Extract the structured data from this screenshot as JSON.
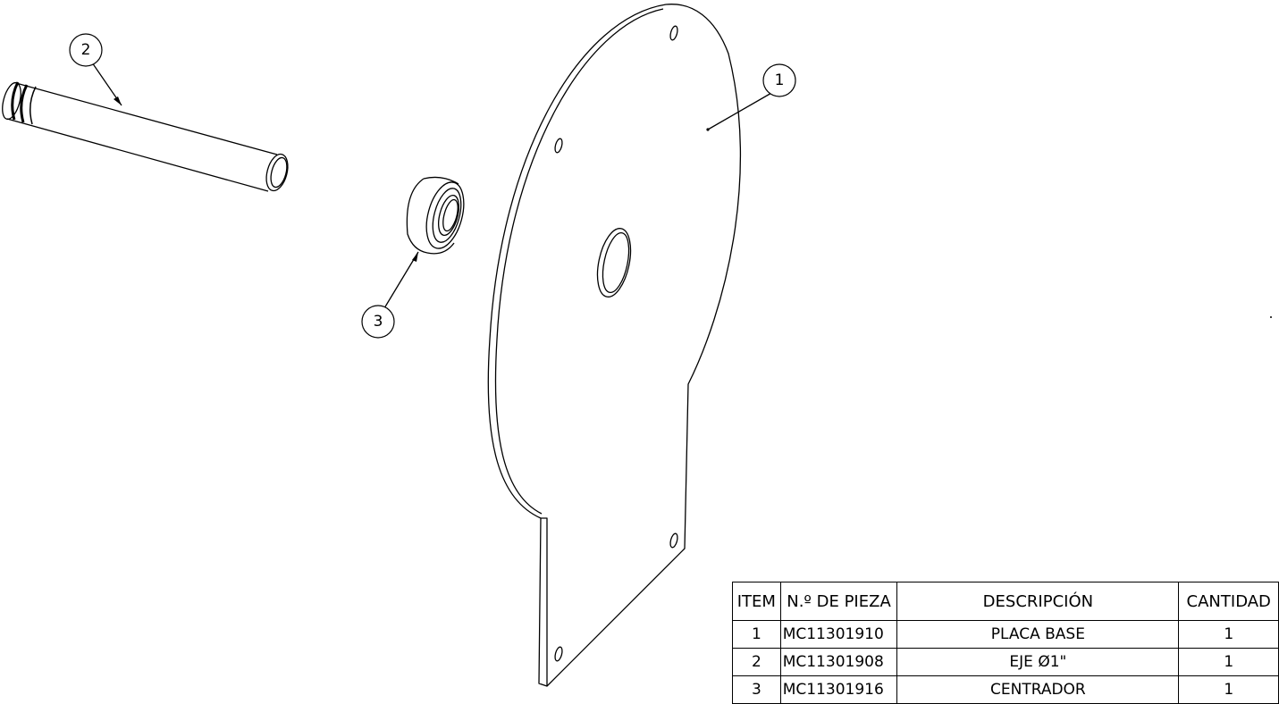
{
  "balloons": [
    {
      "label": "1"
    },
    {
      "label": "2"
    },
    {
      "label": "3"
    }
  ],
  "bom": {
    "headers": [
      "ITEM",
      "N.º DE PIEZA",
      "DESCRIPCIÓN",
      "CANTIDAD"
    ],
    "rows": [
      {
        "item": "1",
        "part": "MC11301910",
        "desc": "PLACA BASE",
        "qty": "1"
      },
      {
        "item": "2",
        "part": "MC11301908",
        "desc": "EJE Ø1\"",
        "qty": "1"
      },
      {
        "item": "3",
        "part": "MC11301916",
        "desc": "CENTRADOR",
        "qty": "1"
      }
    ]
  }
}
